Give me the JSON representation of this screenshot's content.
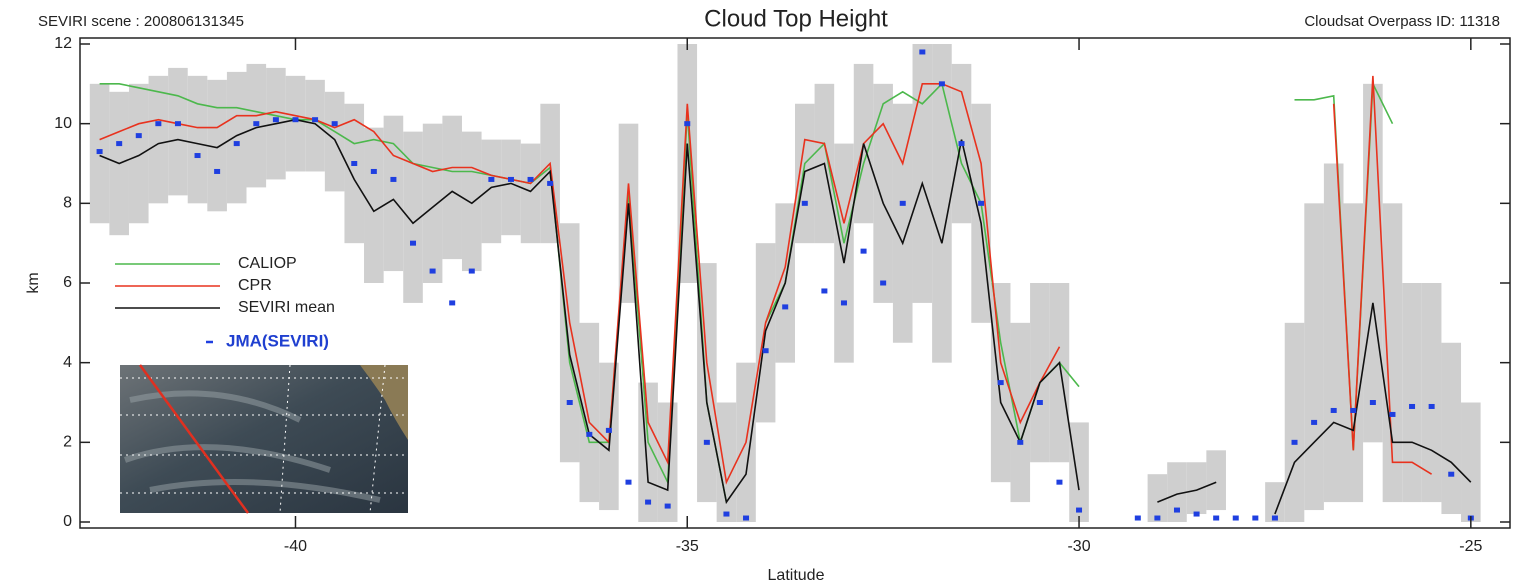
{
  "chart_data": {
    "type": "line",
    "scene_label": "SEVIRI scene : 200806131345",
    "title": "Cloud Top Height",
    "overpass_label": "Cloudsat Overpass ID: 11318",
    "xlabel": "Latitude",
    "ylabel": "km",
    "xlim": [
      -42.75,
      -24.5
    ],
    "ylim": [
      0,
      12
    ],
    "xticks": [
      -40,
      -35,
      -30,
      -25
    ],
    "yticks": [
      0,
      2,
      4,
      6,
      8,
      10,
      12
    ],
    "x": [
      -42.5,
      -42.25,
      -42,
      -41.75,
      -41.5,
      -41.25,
      -41,
      -40.75,
      -40.5,
      -40.25,
      -40,
      -39.75,
      -39.5,
      -39.25,
      -39,
      -38.75,
      -38.5,
      -38.25,
      -38,
      -37.75,
      -37.5,
      -37.25,
      -37,
      -36.75,
      -36.5,
      -36.25,
      -36,
      -35.75,
      -35.5,
      -35.25,
      -35,
      -34.75,
      -34.5,
      -34.25,
      -34,
      -33.75,
      -33.5,
      -33.25,
      -33,
      -32.75,
      -32.5,
      -32.25,
      -32,
      -31.75,
      -31.5,
      -31.25,
      -31,
      -30.75,
      -30.5,
      -30.25,
      -30,
      -29.75,
      -29.5,
      -29.25,
      -29,
      -28.75,
      -28.5,
      -28.25,
      -28,
      -27.75,
      -27.5,
      -27.25,
      -27,
      -26.75,
      -26.5,
      -26.25,
      -26,
      -25.75,
      -25.5,
      -25.25,
      -25
    ],
    "series": [
      {
        "name": "CALIOP",
        "color": "#4cb84c",
        "values": [
          11,
          11,
          10.9,
          10.8,
          10.7,
          10.5,
          10.4,
          10.4,
          10.3,
          10.2,
          10.1,
          10.1,
          9.8,
          9.5,
          9.6,
          9.5,
          9.0,
          8.9,
          8.8,
          8.8,
          8.7,
          8.6,
          8.5,
          8.9,
          4.0,
          2.0,
          2.0,
          8.3,
          2.0,
          1.0,
          10.3,
          3.0,
          0.5,
          null,
          5.0,
          6.0,
          9.0,
          9.5,
          7.0,
          9.0,
          10.5,
          10.8,
          10.5,
          11.0,
          9.0,
          8.0,
          4.5,
          2.0,
          3.5,
          4.0,
          3.4,
          null,
          null,
          null,
          null,
          null,
          null,
          null,
          null,
          null,
          null,
          10.6,
          10.6,
          10.7,
          1.8,
          11.0,
          10.0,
          null,
          null,
          null,
          null
        ]
      },
      {
        "name": "CPR",
        "color": "#e8321e",
        "values": [
          9.6,
          9.8,
          10.0,
          10.1,
          10.0,
          9.9,
          9.9,
          10.2,
          10.2,
          10.3,
          10.2,
          10.1,
          9.9,
          10.1,
          9.8,
          9.2,
          9.0,
          8.8,
          8.9,
          8.9,
          8.7,
          8.6,
          8.5,
          9.0,
          5.0,
          2.5,
          2.0,
          8.5,
          2.5,
          1.5,
          10.5,
          4.0,
          1.0,
          2.0,
          5.0,
          6.4,
          9.6,
          9.5,
          7.5,
          9.5,
          10.0,
          9.0,
          11.0,
          11.0,
          10.8,
          9.0,
          4.0,
          2.5,
          3.5,
          4.4,
          null,
          null,
          null,
          null,
          null,
          null,
          null,
          null,
          null,
          null,
          null,
          null,
          null,
          10.5,
          1.8,
          11.2,
          1.5,
          1.5,
          1.2,
          null,
          null
        ]
      },
      {
        "name": "SEVIRI mean",
        "color": "#111111",
        "band_color": "#cfcfcf",
        "values": [
          9.2,
          9.0,
          9.2,
          9.5,
          9.6,
          9.5,
          9.4,
          9.7,
          9.9,
          10.0,
          10.1,
          10.0,
          9.6,
          8.6,
          7.8,
          8.1,
          7.5,
          7.9,
          8.3,
          8.0,
          8.4,
          8.5,
          8.3,
          8.8,
          4.2,
          2.2,
          1.8,
          8.0,
          1.0,
          0.8,
          9.5,
          3.0,
          0.5,
          1.2,
          4.8,
          6.0,
          8.8,
          9.0,
          6.5,
          9.5,
          8.0,
          7.0,
          8.5,
          7.0,
          9.6,
          7.5,
          3.0,
          2.0,
          3.5,
          4.0,
          0.8,
          null,
          null,
          null,
          0.5,
          0.7,
          0.8,
          1.0,
          null,
          null,
          0.2,
          1.5,
          2.0,
          2.5,
          2.3,
          5.5,
          2.0,
          2.0,
          1.8,
          1.5,
          1.0
        ],
        "upper": [
          11,
          10.8,
          11,
          11.2,
          11.4,
          11.2,
          11.1,
          11.3,
          11.5,
          11.4,
          11.2,
          11.1,
          10.8,
          10.5,
          9.9,
          10.2,
          9.8,
          10.0,
          10.2,
          9.8,
          9.6,
          9.6,
          9.5,
          10.5,
          7.5,
          5.0,
          4.0,
          10.0,
          3.5,
          3.0,
          12,
          6.5,
          3.0,
          4.0,
          7.0,
          8.0,
          10.5,
          11.0,
          9.5,
          11.5,
          11.0,
          10.5,
          12,
          12,
          11.5,
          10.5,
          6.0,
          5.0,
          6.0,
          6.0,
          2.5,
          null,
          null,
          null,
          1.2,
          1.5,
          1.5,
          1.8,
          null,
          null,
          1.0,
          5.0,
          8.0,
          9.0,
          8.0,
          11.0,
          8.0,
          6.0,
          6.0,
          4.5,
          3.0
        ],
        "lower": [
          7.5,
          7.2,
          7.5,
          8.0,
          8.2,
          8.0,
          7.8,
          8.0,
          8.4,
          8.6,
          8.8,
          8.8,
          8.3,
          7.0,
          6.0,
          6.3,
          5.5,
          6.0,
          6.6,
          6.3,
          7.0,
          7.2,
          7.0,
          7.0,
          1.5,
          0.5,
          0.3,
          5.5,
          0,
          0,
          6.0,
          0.5,
          0,
          0,
          2.5,
          4.0,
          7.0,
          7.0,
          4.0,
          7.5,
          5.5,
          4.5,
          5.5,
          4.0,
          7.5,
          5.0,
          1.0,
          0.5,
          1.5,
          1.5,
          0,
          null,
          null,
          null,
          0,
          0,
          0.2,
          0.3,
          null,
          null,
          0,
          0,
          0.3,
          0.5,
          0.5,
          2.0,
          0.5,
          0.5,
          0.5,
          0.2,
          0
        ]
      },
      {
        "name": "JMA(SEVIRI)",
        "color": "#1f3fe0",
        "marker": "square",
        "values": [
          9.3,
          9.5,
          9.7,
          10.0,
          10.0,
          9.2,
          8.8,
          9.5,
          10.0,
          10.1,
          10.1,
          10.1,
          10.0,
          9.0,
          8.8,
          8.6,
          7.0,
          6.3,
          5.5,
          6.3,
          8.6,
          8.6,
          8.6,
          8.5,
          3.0,
          2.2,
          2.3,
          1.0,
          0.5,
          0.4,
          10.0,
          2.0,
          0.2,
          0.1,
          4.3,
          5.4,
          8.0,
          5.8,
          5.5,
          6.8,
          6.0,
          8.0,
          11.8,
          11.0,
          9.5,
          8.0,
          3.5,
          2.0,
          3.0,
          1.0,
          0.3,
          null,
          null,
          0.1,
          0.1,
          0.3,
          0.2,
          0.1,
          0.1,
          0.1,
          0.1,
          2.0,
          2.5,
          2.8,
          2.8,
          3.0,
          2.7,
          2.9,
          2.9,
          1.2,
          0.1
        ]
      }
    ]
  }
}
